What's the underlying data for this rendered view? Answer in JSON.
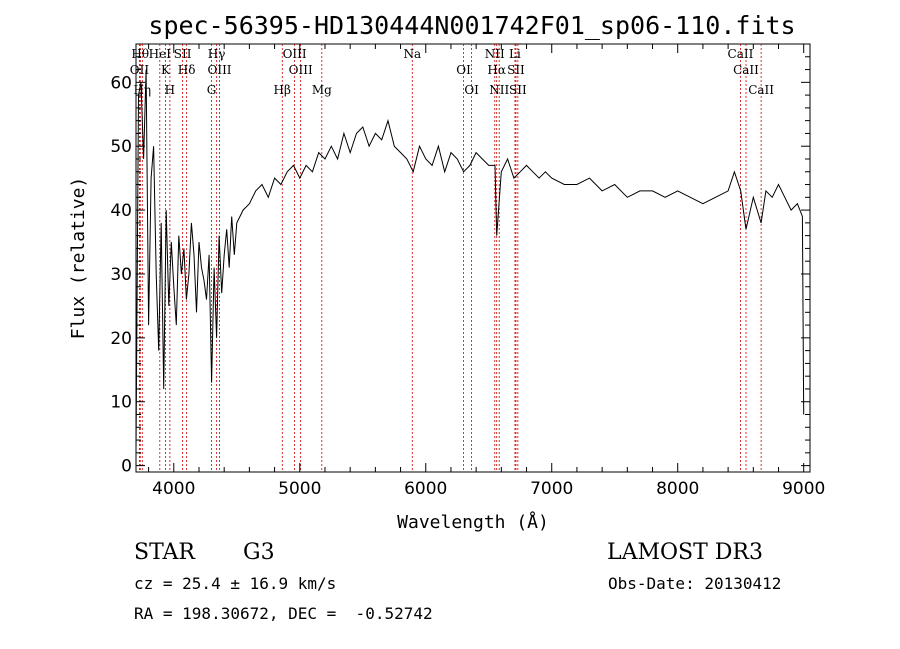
{
  "title": "spec-56395-HD130444N001742F01_sp06-110.fits",
  "info": {
    "class_label": "STAR",
    "subclass": "G3",
    "survey": "LAMOST DR3",
    "cz": "cz = 25.4 ± 16.9 km/s",
    "obs_date": "Obs-Date: 20130412",
    "coords": "RA = 198.30672, DEC =  -0.52742"
  },
  "chart_data": {
    "type": "line",
    "title": "spec-56395-HD130444N001742F01_sp06-110.fits",
    "xlabel": "Wavelength (Å)",
    "ylabel": "Flux (relative)",
    "xlim": [
      3700,
      9050
    ],
    "ylim": [
      -1,
      66
    ],
    "x_ticks": [
      4000,
      5000,
      6000,
      7000,
      8000,
      9000
    ],
    "y_ticks": [
      0,
      10,
      20,
      30,
      40,
      50,
      60
    ],
    "grid": false,
    "line_color": "#000000",
    "marker_color": "#cc0000",
    "series": [
      {
        "x": [
          3700,
          3720,
          3740,
          3760,
          3780,
          3800,
          3820,
          3840,
          3860,
          3880,
          3900,
          3920,
          3940,
          3960,
          3980,
          4000,
          4020,
          4040,
          4060,
          4080,
          4100,
          4120,
          4140,
          4160,
          4180,
          4200,
          4220,
          4240,
          4260,
          4280,
          4300,
          4320,
          4340,
          4360,
          4380,
          4400,
          4420,
          4440,
          4460,
          4480,
          4500,
          4550,
          4600,
          4650,
          4700,
          4750,
          4800,
          4850,
          4900,
          4950,
          5000,
          5050,
          5100,
          5150,
          5200,
          5250,
          5300,
          5350,
          5400,
          5450,
          5500,
          5550,
          5600,
          5650,
          5700,
          5750,
          5800,
          5850,
          5900,
          5950,
          6000,
          6050,
          6100,
          6150,
          6200,
          6250,
          6300,
          6350,
          6400,
          6450,
          6500,
          6550,
          6563,
          6600,
          6650,
          6700,
          6750,
          6800,
          6850,
          6900,
          6950,
          7000,
          7100,
          7200,
          7300,
          7400,
          7500,
          7600,
          7700,
          7800,
          7900,
          8000,
          8100,
          8200,
          8300,
          8400,
          8450,
          8500,
          8542,
          8600,
          8662,
          8700,
          8750,
          8800,
          8850,
          8900,
          8950,
          8990,
          9000
        ],
        "y": [
          2,
          58,
          60,
          48,
          62,
          22,
          45,
          50,
          30,
          18,
          38,
          12,
          40,
          25,
          35,
          28,
          22,
          36,
          30,
          34,
          26,
          30,
          38,
          33,
          24,
          35,
          31,
          29,
          26,
          33,
          13,
          31,
          20,
          36,
          27,
          33,
          37,
          31,
          39,
          33,
          38,
          40,
          41,
          43,
          44,
          42,
          45,
          44,
          46,
          47,
          45,
          47,
          46,
          49,
          48,
          50,
          48,
          52,
          49,
          52,
          53,
          50,
          52,
          51,
          54,
          50,
          49,
          48,
          46,
          50,
          48,
          47,
          50,
          46,
          49,
          48,
          46,
          47,
          49,
          48,
          47,
          47,
          36,
          46,
          48,
          45,
          46,
          47,
          46,
          45,
          46,
          45,
          44,
          44,
          45,
          43,
          44,
          42,
          43,
          43,
          42,
          43,
          42,
          41,
          42,
          43,
          46,
          43,
          37,
          42,
          38,
          43,
          42,
          44,
          42,
          40,
          41,
          39,
          8
        ]
      }
    ],
    "line_markers": [
      {
        "wavelength": 3734,
        "label": "Hθ"
      },
      {
        "wavelength": 3727,
        "label": "OII"
      },
      {
        "wavelength": 3750,
        "label": "Hη"
      },
      {
        "wavelength": 3889,
        "label": "HeI"
      },
      {
        "wavelength": 3934,
        "label": "K"
      },
      {
        "wavelength": 3969,
        "label": "H"
      },
      {
        "wavelength": 4070,
        "label": "SII"
      },
      {
        "wavelength": 4102,
        "label": "Hδ"
      },
      {
        "wavelength": 4300,
        "label": "G"
      },
      {
        "wavelength": 4340,
        "label": "Hγ"
      },
      {
        "wavelength": 4363,
        "label": "OIII"
      },
      {
        "wavelength": 4861,
        "label": "Hβ"
      },
      {
        "wavelength": 4959,
        "label": "OIII"
      },
      {
        "wavelength": 5007,
        "label": "OIII"
      },
      {
        "wavelength": 5175,
        "label": "Mg"
      },
      {
        "wavelength": 5893,
        "label": "Na"
      },
      {
        "wavelength": 6300,
        "label": "OI"
      },
      {
        "wavelength": 6364,
        "label": "OI"
      },
      {
        "wavelength": 6548,
        "label": "NII"
      },
      {
        "wavelength": 6563,
        "label": "Hα"
      },
      {
        "wavelength": 6583,
        "label": "NII"
      },
      {
        "wavelength": 6708,
        "label": "Li"
      },
      {
        "wavelength": 6716,
        "label": "SII"
      },
      {
        "wavelength": 6731,
        "label": "SII"
      },
      {
        "wavelength": 8498,
        "label": "CaII"
      },
      {
        "wavelength": 8542,
        "label": "CaII"
      },
      {
        "wavelength": 8662,
        "label": "CaII"
      }
    ]
  }
}
